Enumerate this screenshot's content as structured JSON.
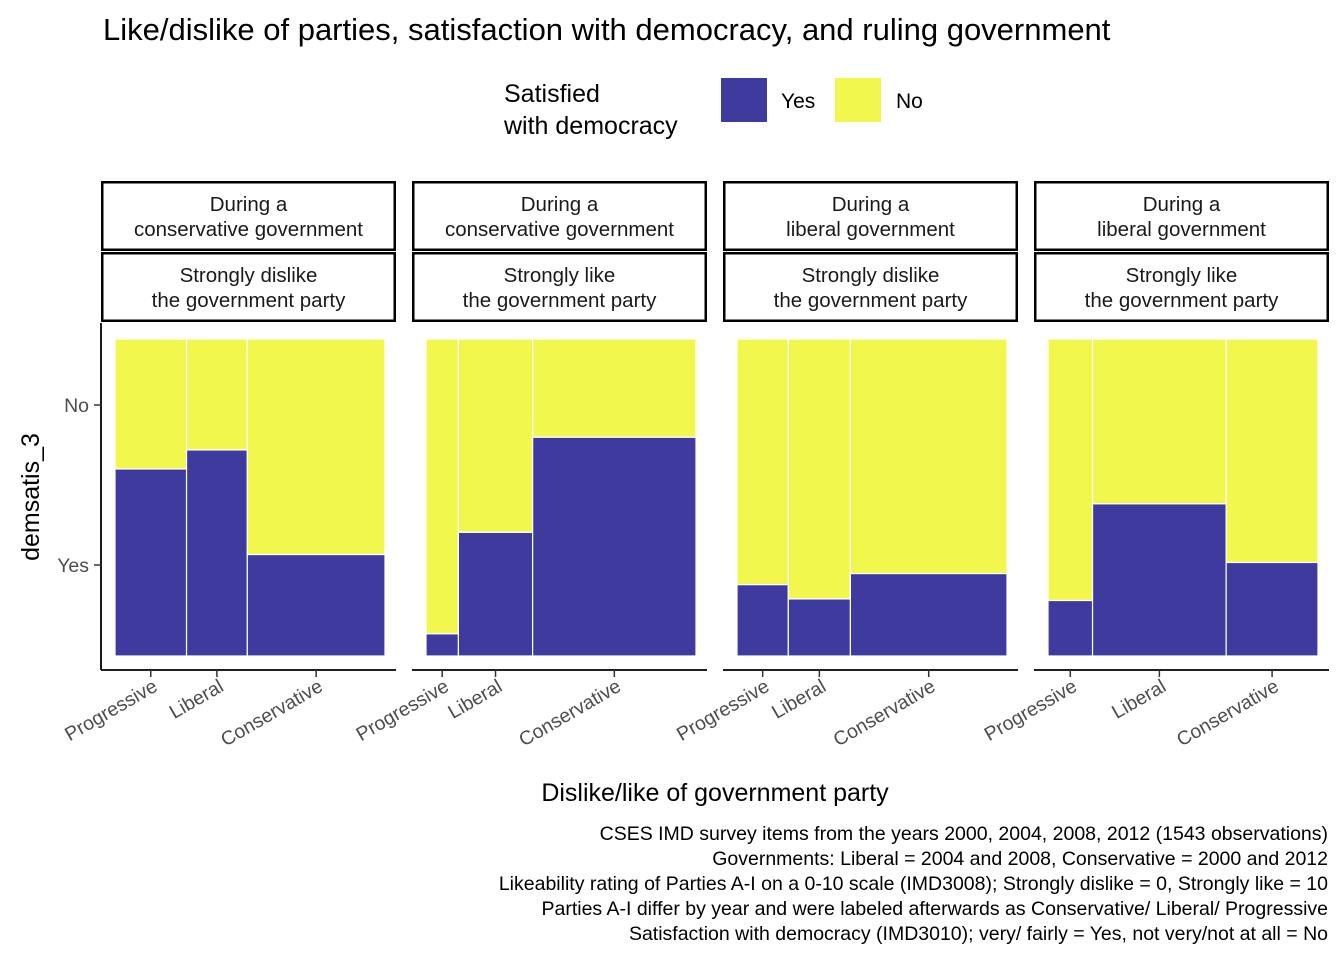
{
  "chart_data": {
    "type": "mosaic",
    "title": "Like/dislike of parties, satisfaction with democracy, and ruling government",
    "xlabel": "Dislike/like of government party",
    "ylabel": "demsatis_3",
    "legend": {
      "title_lines": [
        "Satisfied",
        "with democracy"
      ],
      "position": "top",
      "entries": [
        {
          "label": "Yes",
          "color": "#3E3A9E"
        },
        {
          "label": "No",
          "color": "#F2F74D"
        }
      ]
    },
    "categories": [
      "Progressive",
      "Liberal",
      "Conservative"
    ],
    "y_ticks": [
      "No",
      "Yes"
    ],
    "panels": [
      {
        "strip_top": [
          "During a",
          "conservative government"
        ],
        "strip_bottom": [
          "Strongly dislike",
          "the government party"
        ],
        "widths": [
          0.265,
          0.225,
          0.51
        ],
        "yes_share": [
          0.59,
          0.65,
          0.32
        ]
      },
      {
        "strip_top": [
          "During a",
          "conservative government"
        ],
        "strip_bottom": [
          "Strongly like",
          "the government party"
        ],
        "widths": [
          0.12,
          0.275,
          0.605
        ],
        "yes_share": [
          0.07,
          0.39,
          0.69
        ]
      },
      {
        "strip_top": [
          "During a",
          "liberal government"
        ],
        "strip_bottom": [
          "Strongly dislike",
          "the government party"
        ],
        "widths": [
          0.19,
          0.23,
          0.58
        ],
        "yes_share": [
          0.225,
          0.18,
          0.26
        ]
      },
      {
        "strip_top": [
          "During a",
          "liberal government"
        ],
        "strip_bottom": [
          "Strongly like",
          "the government party"
        ],
        "widths": [
          0.165,
          0.495,
          0.34
        ],
        "yes_share": [
          0.175,
          0.48,
          0.295
        ]
      }
    ],
    "caption": [
      "CSES IMD survey items from the years 2000, 2004, 2008, 2012 (1543 observations)",
      "Governments: Liberal = 2004 and 2008, Conservative = 2000 and 2012",
      "Likeability rating of Parties A-I on a 0-10 scale (IMD3008); Strongly dislike = 0, Strongly like = 10",
      "Parties A-I differ by year and were labeled afterwards as Conservative/ Liberal/ Progressive",
      "Satisfaction with democracy (IMD3010); very/ fairly = Yes, not very/not at all = No"
    ]
  }
}
